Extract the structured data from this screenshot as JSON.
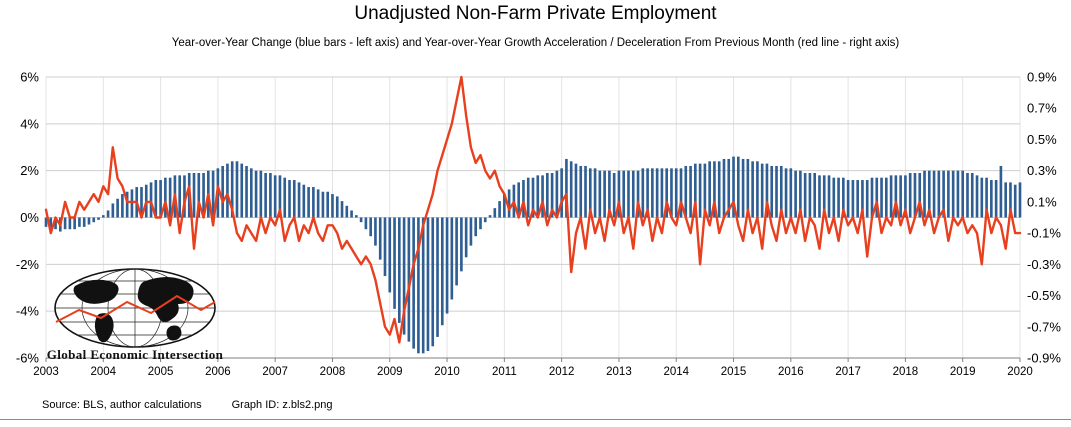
{
  "title": "Unadjusted Non-Farm Private Employment",
  "subtitle": "Year-over-Year Change (blue bars - left axis) and Year-over-Year Growth Acceleration / Deceleration From Previous Month (red line - right axis)",
  "logo": {
    "text": "Global Economic Intersection"
  },
  "footer": {
    "source": "Source: BLS, author calculations",
    "graph_id": "Graph ID: z.bls2.png"
  },
  "colors": {
    "bar": "#2F5E93",
    "line": "#E8401E",
    "grid": "#CFCFCF",
    "minor_grid": "#E4E4E4",
    "axis": "#7F7F7F"
  },
  "chart_data": {
    "type": "bar+line",
    "frequency": "monthly",
    "start": "2003-01",
    "end": "2020-01",
    "title": "Unadjusted Non-Farm Private Employment",
    "grid": true,
    "left_axis": {
      "range": [
        -6,
        6
      ],
      "ticks": [
        "6%",
        "4%",
        "2%",
        "0%",
        "-2%",
        "-4%",
        "-6%"
      ],
      "tick_values": [
        6,
        4,
        2,
        0,
        -2,
        -4,
        -6
      ]
    },
    "right_axis": {
      "range": [
        -0.9,
        0.9
      ],
      "ticks": [
        "0.9%",
        "0.7%",
        "0.5%",
        "0.3%",
        "0.1%",
        "-0.1%",
        "-0.3%",
        "-0.5%",
        "-0.7%",
        "-0.9%"
      ],
      "tick_values": [
        0.9,
        0.7,
        0.5,
        0.3,
        0.1,
        -0.1,
        -0.3,
        -0.5,
        -0.7,
        -0.9
      ]
    },
    "x_ticks": [
      "2003",
      "2004",
      "2005",
      "2006",
      "2007",
      "2008",
      "2009",
      "2010",
      "2011",
      "2012",
      "2013",
      "2014",
      "2015",
      "2016",
      "2017",
      "2018",
      "2019",
      "2020"
    ],
    "series": [
      {
        "name": "Year-over-Year Change",
        "type": "bar",
        "axis": "left",
        "color": "#2F5E93",
        "values": [
          -0.4,
          -0.5,
          -0.5,
          -0.6,
          -0.5,
          -0.5,
          -0.5,
          -0.4,
          -0.4,
          -0.3,
          -0.2,
          -0.1,
          0.1,
          0.3,
          0.6,
          0.8,
          1.0,
          1.1,
          1.2,
          1.3,
          1.3,
          1.4,
          1.5,
          1.6,
          1.6,
          1.7,
          1.7,
          1.8,
          1.8,
          1.8,
          1.9,
          1.9,
          1.9,
          1.9,
          2.0,
          2.0,
          2.1,
          2.2,
          2.3,
          2.4,
          2.4,
          2.3,
          2.2,
          2.1,
          2.0,
          2.0,
          1.9,
          1.9,
          1.8,
          1.8,
          1.7,
          1.6,
          1.6,
          1.5,
          1.4,
          1.3,
          1.3,
          1.2,
          1.1,
          1.1,
          1.0,
          0.9,
          0.7,
          0.5,
          0.3,
          0.1,
          -0.2,
          -0.5,
          -0.8,
          -1.2,
          -1.8,
          -2.5,
          -3.2,
          -3.9,
          -4.5,
          -5.0,
          -5.3,
          -5.6,
          -5.8,
          -5.8,
          -5.7,
          -5.5,
          -5.1,
          -4.6,
          -4.1,
          -3.5,
          -2.9,
          -2.3,
          -1.7,
          -1.2,
          -0.8,
          -0.5,
          -0.2,
          0.1,
          0.4,
          0.7,
          1.0,
          1.2,
          1.4,
          1.5,
          1.6,
          1.7,
          1.7,
          1.8,
          1.8,
          1.9,
          1.9,
          2.0,
          2.1,
          2.5,
          2.4,
          2.3,
          2.2,
          2.2,
          2.1,
          2.1,
          2.0,
          2.0,
          2.0,
          1.9,
          2.0,
          2.0,
          2.0,
          2.0,
          2.0,
          2.1,
          2.1,
          2.1,
          2.1,
          2.1,
          2.1,
          2.1,
          2.1,
          2.1,
          2.2,
          2.2,
          2.3,
          2.3,
          2.3,
          2.4,
          2.4,
          2.4,
          2.5,
          2.5,
          2.6,
          2.6,
          2.5,
          2.5,
          2.4,
          2.4,
          2.3,
          2.3,
          2.2,
          2.2,
          2.2,
          2.1,
          2.1,
          2.0,
          2.0,
          1.9,
          1.9,
          1.9,
          1.8,
          1.8,
          1.8,
          1.7,
          1.7,
          1.7,
          1.6,
          1.6,
          1.6,
          1.6,
          1.6,
          1.7,
          1.7,
          1.7,
          1.7,
          1.8,
          1.8,
          1.8,
          1.8,
          1.9,
          1.9,
          1.9,
          2.0,
          2.0,
          2.0,
          2.0,
          2.0,
          2.0,
          2.0,
          2.0,
          2.0,
          1.9,
          1.9,
          1.8,
          1.7,
          1.7,
          1.6,
          1.6,
          2.2,
          1.5,
          1.5,
          1.4,
          1.5
        ]
      },
      {
        "name": "Year-over-Year Growth Acceleration / Deceleration From Previous Month",
        "type": "line",
        "axis": "right",
        "color": "#E8401E",
        "values": [
          0.05,
          -0.1,
          0.0,
          -0.05,
          0.1,
          0.0,
          0.0,
          0.1,
          0.05,
          0.1,
          0.15,
          0.1,
          0.2,
          0.15,
          0.45,
          0.25,
          0.2,
          0.1,
          0.1,
          0.1,
          0.0,
          0.1,
          0.1,
          0.0,
          0.0,
          0.1,
          -0.05,
          0.15,
          -0.1,
          0.1,
          0.2,
          -0.2,
          0.1,
          0.0,
          0.15,
          -0.05,
          0.2,
          0.1,
          0.15,
          0.05,
          -0.1,
          -0.15,
          -0.05,
          -0.1,
          -0.15,
          0.0,
          -0.1,
          0.0,
          -0.05,
          0.05,
          -0.15,
          -0.05,
          0.0,
          -0.15,
          -0.05,
          -0.1,
          0.0,
          -0.1,
          -0.15,
          -0.05,
          -0.05,
          -0.1,
          -0.2,
          -0.15,
          -0.2,
          -0.25,
          -0.3,
          -0.25,
          -0.3,
          -0.4,
          -0.55,
          -0.7,
          -0.75,
          -0.65,
          -0.8,
          -0.6,
          -0.45,
          -0.3,
          -0.2,
          -0.05,
          0.05,
          0.15,
          0.3,
          0.4,
          0.5,
          0.6,
          0.75,
          0.9,
          0.65,
          0.45,
          0.35,
          0.4,
          0.3,
          0.25,
          0.3,
          0.2,
          0.15,
          0.05,
          0.1,
          0.0,
          0.1,
          -0.05,
          0.05,
          0.0,
          0.1,
          -0.05,
          0.05,
          0.0,
          0.1,
          0.15,
          -0.35,
          -0.1,
          0.0,
          -0.2,
          0.05,
          -0.1,
          0.0,
          -0.15,
          0.05,
          -0.05,
          0.1,
          -0.1,
          0.0,
          -0.2,
          0.1,
          -0.05,
          0.05,
          -0.15,
          0.0,
          -0.1,
          0.1,
          0.0,
          -0.05,
          0.1,
          0.0,
          -0.1,
          0.1,
          -0.3,
          0.05,
          -0.05,
          0.1,
          -0.1,
          0.0,
          0.05,
          0.1,
          -0.05,
          -0.15,
          0.05,
          -0.1,
          0.0,
          -0.2,
          0.1,
          -0.05,
          -0.15,
          0.05,
          -0.1,
          0.0,
          -0.1,
          0.05,
          -0.15,
          0.0,
          -0.05,
          -0.2,
          0.05,
          -0.1,
          0.0,
          -0.15,
          0.05,
          -0.05,
          0.0,
          -0.1,
          0.05,
          -0.25,
          0.0,
          0.1,
          -0.1,
          0.0,
          -0.05,
          0.1,
          -0.05,
          0.05,
          -0.1,
          0.0,
          0.1,
          -0.05,
          0.05,
          -0.1,
          0.0,
          0.05,
          -0.15,
          0.0,
          -0.05,
          0.0,
          -0.1,
          -0.05,
          -0.1,
          -0.3,
          0.05,
          -0.1,
          0.0,
          -0.05,
          -0.2,
          0.05,
          -0.1,
          -0.1
        ]
      }
    ]
  }
}
